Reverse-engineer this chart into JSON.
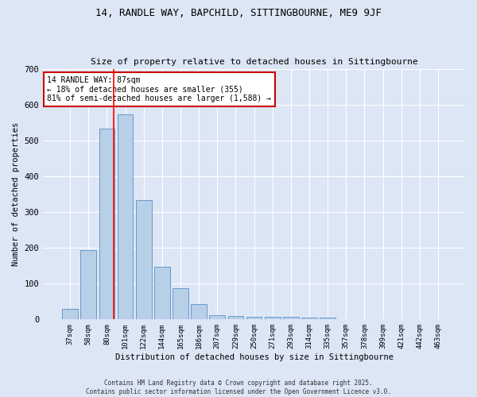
{
  "title1": "14, RANDLE WAY, BAPCHILD, SITTINGBOURNE, ME9 9JF",
  "title2": "Size of property relative to detached houses in Sittingbourne",
  "xlabel": "Distribution of detached houses by size in Sittingbourne",
  "ylabel": "Number of detached properties",
  "categories": [
    "37sqm",
    "58sqm",
    "80sqm",
    "101sqm",
    "122sqm",
    "144sqm",
    "165sqm",
    "186sqm",
    "207sqm",
    "229sqm",
    "250sqm",
    "271sqm",
    "293sqm",
    "314sqm",
    "335sqm",
    "357sqm",
    "378sqm",
    "399sqm",
    "421sqm",
    "442sqm",
    "463sqm"
  ],
  "values": [
    30,
    193,
    533,
    573,
    333,
    147,
    87,
    42,
    12,
    10,
    8,
    8,
    8,
    5,
    5,
    0,
    0,
    0,
    0,
    0,
    0
  ],
  "bar_color": "#b8cfe8",
  "bar_edge_color": "#6699cc",
  "background_color": "#dce6f5",
  "grid_color": "#ffffff",
  "red_line_x": 2.35,
  "annotation_text": "14 RANDLE WAY: 87sqm\n← 18% of detached houses are smaller (355)\n81% of semi-detached houses are larger (1,588) →",
  "annotation_box_color": "#ffffff",
  "annotation_border_color": "#cc0000",
  "ylim": [
    0,
    700
  ],
  "yticks": [
    0,
    100,
    200,
    300,
    400,
    500,
    600,
    700
  ],
  "footer": "Contains HM Land Registry data © Crown copyright and database right 2025.\nContains public sector information licensed under the Open Government Licence v3.0."
}
